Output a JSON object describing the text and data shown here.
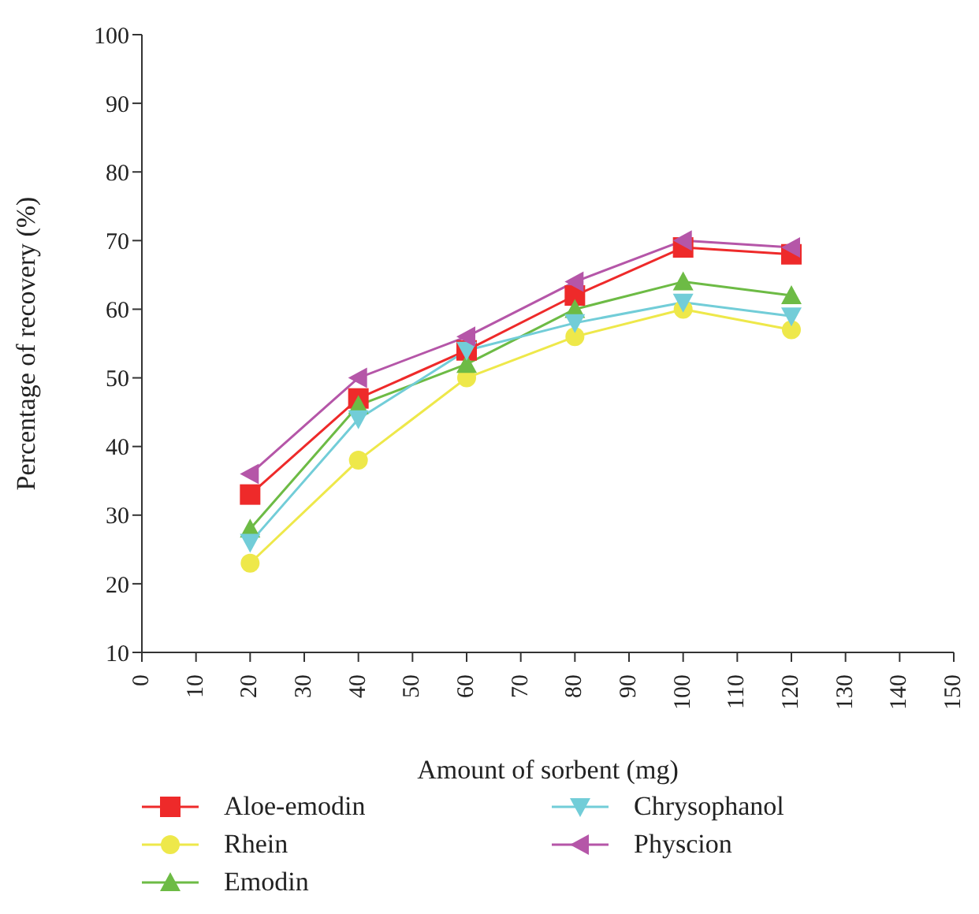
{
  "chart_data": {
    "type": "line",
    "xlabel": "Amount of sorbent (mg)",
    "ylabel": "Percentage of recovery (%)",
    "x": [
      20,
      40,
      60,
      80,
      100,
      120
    ],
    "xlim": [
      0,
      150
    ],
    "xticks": [
      0,
      10,
      20,
      30,
      40,
      50,
      60,
      70,
      80,
      90,
      100,
      110,
      120,
      130,
      140,
      150
    ],
    "ylim": [
      10,
      100
    ],
    "yticks": [
      10,
      20,
      30,
      40,
      50,
      60,
      70,
      80,
      90,
      100
    ],
    "grid": false,
    "legend": "bottom",
    "line_style": "solid",
    "series": [
      {
        "name": "Aloe-emodin",
        "color": "#ee2a2a",
        "marker": "square",
        "values": [
          33,
          47,
          54,
          62,
          69,
          68
        ]
      },
      {
        "name": "Rhein",
        "color": "#eee84a",
        "marker": "circle",
        "values": [
          23,
          38,
          50,
          56,
          60,
          57
        ]
      },
      {
        "name": "Emodin",
        "color": "#6dbb45",
        "marker": "triangle",
        "values": [
          28,
          46,
          52,
          60,
          64,
          62
        ]
      },
      {
        "name": "Chrysophanol",
        "color": "#72cdd8",
        "marker": "triangle-down",
        "values": [
          26,
          44,
          54,
          58,
          61,
          59
        ]
      },
      {
        "name": "Physcion",
        "color": "#b556a8",
        "marker": "triangle-left",
        "values": [
          36,
          50,
          56,
          64,
          70,
          69
        ]
      }
    ]
  }
}
